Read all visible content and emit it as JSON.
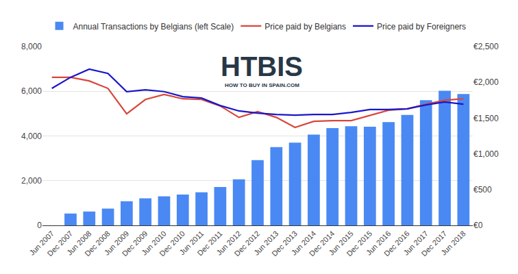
{
  "chart_data": {
    "type": "bar",
    "categories": [
      "Jun 2007",
      "Dec 2007",
      "Jun 2008",
      "Dec 2008",
      "Jun 2009",
      "Dec 2009",
      "Jun 2010",
      "Dec 2010",
      "Jun 2011",
      "Dec 2011",
      "Jun 2012",
      "Dec 2012",
      "Jun 2013",
      "Dec 2013",
      "Jun 2014",
      "Dec 2014",
      "Jun 2015",
      "Dec 2015",
      "Jun 2016",
      "Dec 2016",
      "Jun 2017",
      "Dec 2017",
      "Jun 2018"
    ],
    "series": [
      {
        "name": "Annual Transactions by Belgians (left Scale)",
        "type": "bar",
        "color": "#4a89f3",
        "values": [
          null,
          530,
          620,
          750,
          1080,
          1210,
          1300,
          1380,
          1480,
          1720,
          2060,
          2920,
          3500,
          3700,
          4060,
          4350,
          4440,
          4410,
          4620,
          4940,
          5600,
          6020,
          5880
        ]
      },
      {
        "name": "Price paid by Belgians",
        "type": "line",
        "axis": "y2",
        "color": "#d8473b",
        "values": [
          2070,
          2070,
          2020,
          1915,
          1560,
          1760,
          1830,
          1770,
          1760,
          1670,
          1510,
          1590,
          1510,
          1370,
          1455,
          1465,
          1465,
          1540,
          1610,
          1630,
          1695,
          1750,
          1770
        ]
      },
      {
        "name": "Price paid by Foreigners",
        "type": "line",
        "axis": "y2",
        "color": "#1a16c8",
        "values": [
          1915,
          2070,
          2185,
          2125,
          1870,
          1895,
          1870,
          1800,
          1780,
          1675,
          1600,
          1570,
          1550,
          1540,
          1550,
          1550,
          1580,
          1620,
          1620,
          1630,
          1685,
          1725,
          1695
        ]
      }
    ],
    "ylim": [
      0,
      8000
    ],
    "yticks": [
      0,
      {
        "value": 2000,
        "label": "2,000"
      },
      {
        "value": 4000,
        "label": "4,000"
      },
      {
        "value": 6000,
        "label": "6,000"
      },
      {
        "value": 8000,
        "label": "8,000"
      }
    ],
    "y2lim": [
      0,
      2500
    ],
    "y2ticks": [
      {
        "value": 0,
        "label": "€0"
      },
      {
        "value": 500,
        "label": "€500"
      },
      {
        "value": 1000,
        "label": "€1,000"
      },
      {
        "value": 1500,
        "label": "€1,500"
      },
      {
        "value": 2000,
        "label": "€2,000"
      },
      {
        "value": 2500,
        "label": "€2,500"
      }
    ],
    "grid": true,
    "legend": "top",
    "annotations": [
      "HTBIS",
      "HOW TO BUY IN SPAIN.COM"
    ]
  }
}
